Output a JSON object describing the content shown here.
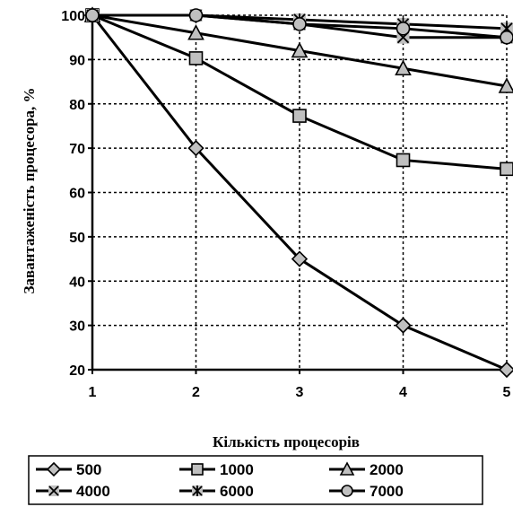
{
  "chart_data": {
    "type": "line",
    "xlabel": "Кількість процесорів",
    "ylabel": "Завантаженість процесора, %",
    "xlim": [
      1,
      5
    ],
    "ylim": [
      20,
      100
    ],
    "x_ticks": [
      "1",
      "2",
      "3",
      "4",
      "5"
    ],
    "y_ticks": [
      "20",
      "30",
      "40",
      "50",
      "60",
      "70",
      "80",
      "90",
      "100"
    ],
    "grid": "dotted",
    "legend_position": "bottom",
    "x": [
      1,
      2,
      3,
      4,
      5
    ],
    "series": [
      {
        "name": "500",
        "marker": "diamond",
        "values": [
          100,
          70,
          45,
          30,
          20
        ]
      },
      {
        "name": "1000",
        "marker": "square",
        "values": [
          100,
          90.3,
          77.3,
          67.3,
          65.3
        ]
      },
      {
        "name": "2000",
        "marker": "triangle",
        "values": [
          100,
          96,
          92,
          88,
          84
        ]
      },
      {
        "name": "4000",
        "marker": "x-square",
        "values": [
          100,
          100,
          98,
          95,
          95
        ]
      },
      {
        "name": "6000",
        "marker": "star-square",
        "values": [
          100,
          100,
          99,
          98,
          97
        ]
      },
      {
        "name": "7000",
        "marker": "circle",
        "values": [
          100,
          100,
          98,
          97,
          95
        ]
      }
    ],
    "colors": {
      "line": "#000000",
      "marker_fill": "#c0c0c0",
      "grid": "#000000"
    }
  }
}
